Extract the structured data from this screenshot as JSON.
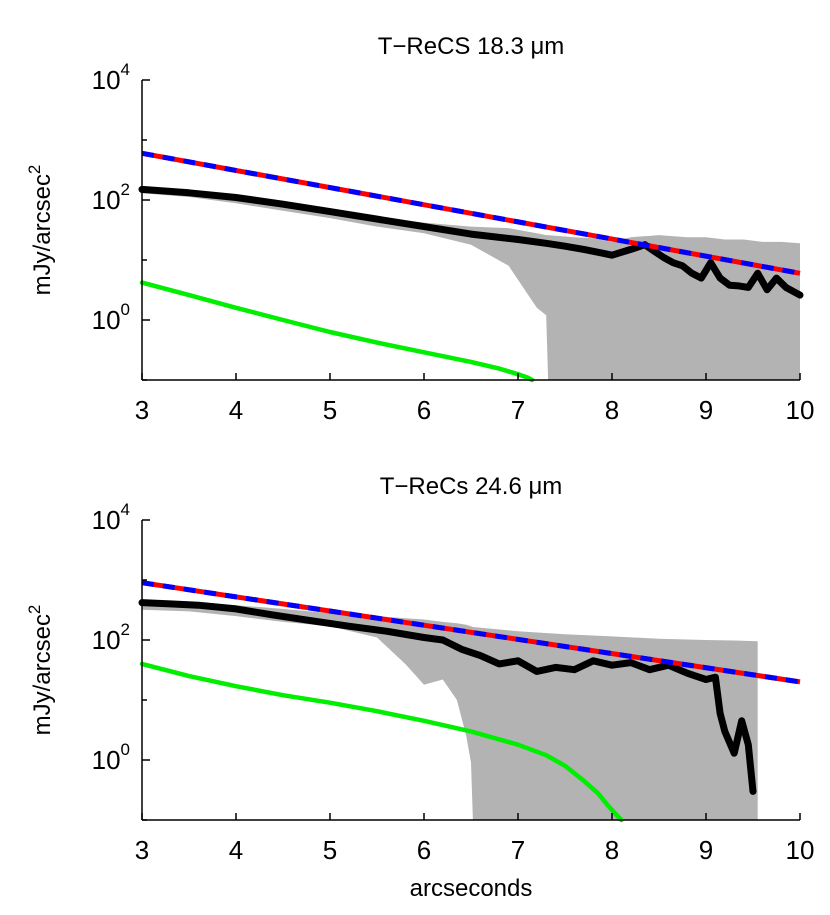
{
  "chart_data": [
    {
      "type": "line",
      "title": "T−ReCS 18.3 μm",
      "ylabel": "mJy/arcsec",
      "ylabel_sup": "2",
      "xlabel": "",
      "y_scale": "log",
      "xlim": [
        3,
        10
      ],
      "ylim": [
        0.1,
        10000
      ],
      "x_ticks": [
        "3",
        "4",
        "5",
        "6",
        "7",
        "8",
        "9",
        "10"
      ],
      "y_ticks": [
        {
          "base": "10",
          "exp": "4",
          "value": 10000
        },
        {
          "base": "10",
          "exp": "2",
          "value": 100
        },
        {
          "base": "10",
          "exp": "0",
          "value": 1
        }
      ],
      "series": [
        {
          "name": "uncertainty band",
          "kind": "band",
          "color": "#b3b3b3",
          "x": [
            3.0,
            3.5,
            4.0,
            4.5,
            5.0,
            5.5,
            6.0,
            6.5,
            6.9,
            7.2,
            7.3,
            7.32,
            7.6,
            7.8,
            8.0,
            8.2,
            8.35,
            8.37,
            8.5,
            8.8,
            9.0,
            9.2,
            9.4,
            9.6,
            9.8,
            10.0
          ],
          "upper": [
            160,
            140,
            120,
            92,
            70,
            52,
            42,
            36,
            34,
            28,
            26,
            26,
            24,
            23,
            20,
            24,
            25,
            25,
            26,
            24,
            24,
            22,
            22,
            20,
            20,
            19
          ],
          "lower": [
            130,
            112,
            88,
            66,
            50,
            36,
            28,
            18,
            8,
            1.6,
            1.2,
            0.1,
            0.1,
            0.1,
            0.1,
            0.1,
            0.1,
            0.1,
            0.1,
            0.1,
            0.1,
            0.1,
            0.1,
            0.1,
            0.1,
            0.1
          ]
        },
        {
          "name": "observed profile",
          "color": "#000000",
          "x": [
            3.0,
            3.5,
            4.0,
            4.5,
            5.0,
            5.5,
            6.0,
            6.5,
            7.0,
            7.3,
            7.5,
            7.7,
            7.9,
            8.0,
            8.2,
            8.35,
            8.45,
            8.55,
            8.65,
            8.75,
            8.85,
            8.95,
            9.05,
            9.15,
            9.25,
            9.35,
            9.45,
            9.55,
            9.65,
            9.75,
            9.85,
            10.0
          ],
          "y": [
            150,
            132,
            110,
            85,
            64,
            48,
            36,
            27,
            22,
            19,
            17,
            15,
            13,
            12,
            15,
            18,
            14,
            11,
            9,
            8,
            6,
            5,
            9,
            5,
            3.8,
            3.7,
            3.5,
            6,
            3.2,
            5,
            3.5,
            2.6
          ]
        },
        {
          "name": "model fit (red)",
          "color": "#ff0000",
          "dashed": true,
          "x": [
            3.0,
            10.0
          ],
          "y": [
            600,
            6
          ]
        },
        {
          "name": "model fit (blue)",
          "color": "#0000ff",
          "dashed": true,
          "x": [
            3.0,
            10.0
          ],
          "y": [
            600,
            6
          ]
        },
        {
          "name": "green component",
          "color": "#00ee00",
          "x": [
            3.0,
            3.5,
            4.0,
            4.5,
            5.0,
            5.5,
            6.0,
            6.5,
            6.8,
            7.0,
            7.1,
            7.15
          ],
          "y": [
            4.2,
            2.6,
            1.6,
            1.0,
            0.63,
            0.42,
            0.29,
            0.2,
            0.155,
            0.125,
            0.11,
            0.1
          ]
        }
      ]
    },
    {
      "type": "line",
      "title": "T−ReCs 24.6 μm",
      "ylabel": "mJy/arcsec",
      "ylabel_sup": "2",
      "xlabel": "arcseconds",
      "y_scale": "log",
      "xlim": [
        3,
        10
      ],
      "ylim": [
        0.1,
        10000
      ],
      "x_ticks": [
        "3",
        "4",
        "5",
        "6",
        "7",
        "8",
        "9",
        "10"
      ],
      "y_ticks": [
        {
          "base": "10",
          "exp": "4",
          "value": 10000
        },
        {
          "base": "10",
          "exp": "2",
          "value": 100
        },
        {
          "base": "10",
          "exp": "0",
          "value": 1
        }
      ],
      "series": [
        {
          "name": "uncertainty band",
          "kind": "band",
          "color": "#b3b3b3",
          "x": [
            3.0,
            3.5,
            4.0,
            4.5,
            5.0,
            5.5,
            5.8,
            6.0,
            6.2,
            6.35,
            6.45,
            6.5,
            6.52,
            7.0,
            7.5,
            8.0,
            8.5,
            9.0,
            9.3,
            9.55
          ],
          "upper": [
            470,
            440,
            380,
            330,
            280,
            250,
            230,
            220,
            200,
            190,
            180,
            170,
            165,
            140,
            125,
            115,
            105,
            100,
            98,
            95
          ],
          "lower": [
            320,
            300,
            250,
            200,
            170,
            110,
            40,
            18,
            22,
            10,
            2.5,
            0.9,
            0.1,
            0.1,
            0.1,
            0.1,
            0.1,
            0.1,
            0.1,
            0.1
          ]
        },
        {
          "name": "observed profile",
          "color": "#000000",
          "x": [
            3.0,
            3.3,
            3.6,
            4.0,
            4.4,
            4.8,
            5.2,
            5.6,
            6.0,
            6.2,
            6.4,
            6.6,
            6.8,
            7.0,
            7.2,
            7.4,
            7.6,
            7.8,
            8.0,
            8.2,
            8.4,
            8.6,
            8.8,
            9.0,
            9.1,
            9.15,
            9.2,
            9.3,
            9.38,
            9.45,
            9.5
          ],
          "y": [
            420,
            400,
            380,
            330,
            260,
            210,
            170,
            140,
            110,
            100,
            70,
            55,
            40,
            45,
            30,
            35,
            32,
            45,
            38,
            42,
            32,
            38,
            28,
            22,
            24,
            6,
            3,
            1.3,
            4.5,
            1.8,
            0.3
          ]
        },
        {
          "name": "model fit (red)",
          "color": "#ff0000",
          "dashed": true,
          "x": [
            3.0,
            10.0
          ],
          "y": [
            900,
            20
          ]
        },
        {
          "name": "model fit (blue)",
          "color": "#0000ff",
          "dashed": true,
          "x": [
            3.0,
            10.0
          ],
          "y": [
            900,
            20
          ]
        },
        {
          "name": "green component",
          "color": "#00ee00",
          "x": [
            3.0,
            3.5,
            4.0,
            4.5,
            5.0,
            5.5,
            6.0,
            6.5,
            7.0,
            7.3,
            7.5,
            7.7,
            7.85,
            7.95,
            8.05,
            8.1
          ],
          "y": [
            40,
            25,
            17,
            12,
            9,
            6.5,
            4.5,
            3.0,
            1.8,
            1.2,
            0.8,
            0.45,
            0.28,
            0.18,
            0.12,
            0.1
          ]
        }
      ]
    }
  ]
}
